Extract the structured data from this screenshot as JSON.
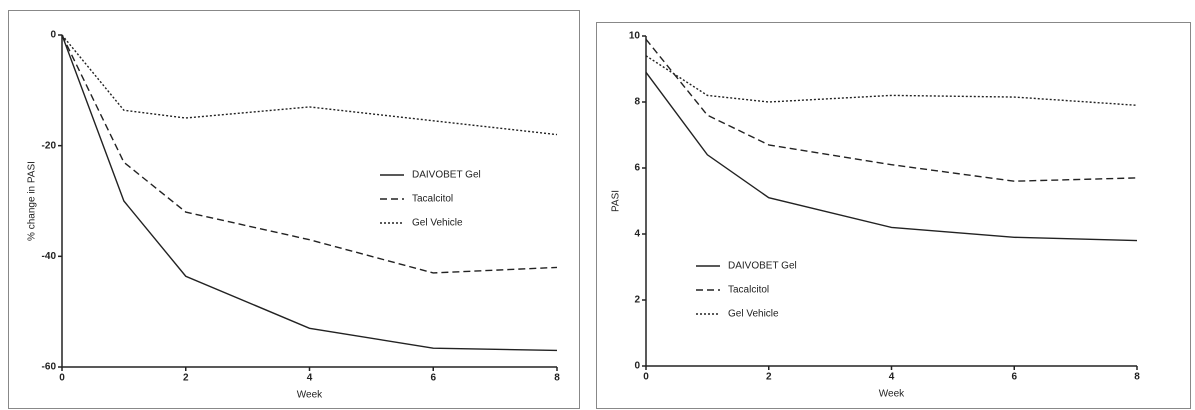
{
  "chart_data": [
    {
      "type": "line",
      "x_label": "Week",
      "y_label": "% change in PASI",
      "x": [
        0,
        1,
        2,
        4,
        6,
        8
      ],
      "xlim": [
        0,
        8
      ],
      "xticks": [
        0,
        2,
        4,
        6,
        8
      ],
      "ylim": [
        -60,
        0
      ],
      "yticks": [
        0,
        -20,
        -40,
        -60
      ],
      "legend": "center-right",
      "series": [
        {
          "name": "DAIVOBET Gel",
          "color": "#222222",
          "dash": "solid",
          "values": [
            0,
            -30,
            -43.6,
            -53,
            -56.6,
            -57
          ]
        },
        {
          "name": "Tacalcitol",
          "color": "#222222",
          "dash": "dashed",
          "values": [
            0,
            -23,
            -32,
            -37,
            -43,
            -42
          ]
        },
        {
          "name": "Gel Vehicle",
          "color": "#222222",
          "dash": "dotted",
          "values": [
            0,
            -13.6,
            -15,
            -13,
            -15.5,
            -18
          ]
        }
      ]
    },
    {
      "type": "line",
      "x_label": "Week",
      "y_label": "PASI",
      "x": [
        0,
        1,
        2,
        4,
        6,
        8
      ],
      "xlim": [
        0,
        8
      ],
      "xticks": [
        0,
        2,
        4,
        6,
        8
      ],
      "ylim": [
        0,
        10
      ],
      "yticks": [
        0,
        2,
        4,
        6,
        8,
        10
      ],
      "legend": "lower-left",
      "series": [
        {
          "name": "DAIVOBET Gel",
          "color": "#222222",
          "dash": "solid",
          "values": [
            8.9,
            6.4,
            5.1,
            4.2,
            3.9,
            3.8
          ]
        },
        {
          "name": "Tacalcitol",
          "color": "#222222",
          "dash": "dashed",
          "values": [
            9.9,
            7.6,
            6.7,
            6.1,
            5.6,
            5.7
          ]
        },
        {
          "name": "Gel Vehicle",
          "color": "#222222",
          "dash": "dotted",
          "values": [
            9.4,
            8.2,
            8.0,
            8.2,
            8.15,
            7.9
          ]
        }
      ]
    }
  ]
}
